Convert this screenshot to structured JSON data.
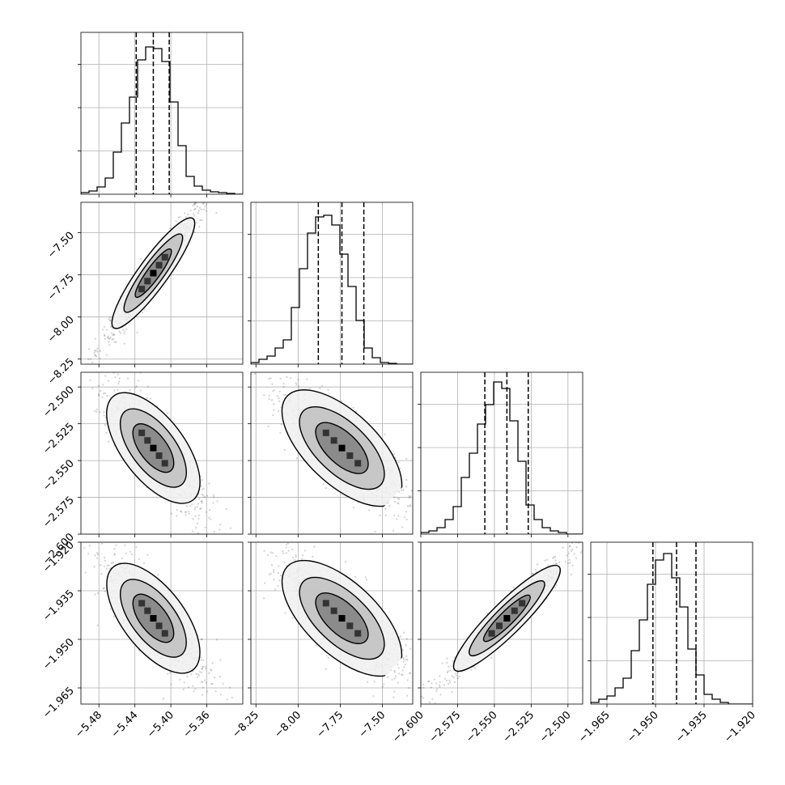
{
  "chart_data": {
    "type": "corner",
    "grid": true,
    "parameters": [
      {
        "range": [
          -5.5,
          -5.32
        ],
        "ticks": [
          -5.48,
          -5.44,
          -5.4,
          -5.36
        ],
        "tick_labels": [
          "−5.48",
          "−5.44",
          "−5.40",
          "−5.36"
        ],
        "quantiles": [
          -5.4385,
          -5.4195,
          -5.4018
        ],
        "histogram": [
          0.01,
          0.02,
          0.045,
          0.1,
          0.26,
          0.44,
          0.6,
          0.83,
          0.91,
          0.9,
          0.82,
          0.57,
          0.3,
          0.11,
          0.05,
          0.025,
          0.015,
          0.01,
          0.005,
          0.0
        ]
      },
      {
        "range": [
          -8.28,
          -7.32
        ],
        "ticks": [
          -8.25,
          -8.0,
          -7.75,
          -7.5
        ],
        "tick_labels": [
          "−8.25",
          "−8.00",
          "−7.75",
          "−7.50"
        ],
        "quantiles": [
          -7.88,
          -7.74,
          -7.61
        ],
        "histogram": [
          0.01,
          0.03,
          0.05,
          0.1,
          0.15,
          0.35,
          0.59,
          0.81,
          0.91,
          0.92,
          0.86,
          0.68,
          0.48,
          0.27,
          0.1,
          0.04,
          0.01,
          0.005,
          0.0,
          0.0
        ]
      },
      {
        "range": [
          -2.6,
          -2.49
        ],
        "ticks": [
          -2.6,
          -2.575,
          -2.55,
          -2.525,
          -2.5
        ],
        "tick_labels": [
          "−2.600",
          "−2.575",
          "−2.550",
          "−2.525",
          "−2.500"
        ],
        "quantiles": [
          -2.5565,
          -2.5415,
          -2.527
        ],
        "histogram": [
          0.01,
          0.02,
          0.04,
          0.09,
          0.17,
          0.35,
          0.5,
          0.68,
          0.8,
          0.94,
          0.9,
          0.7,
          0.45,
          0.18,
          0.09,
          0.04,
          0.02,
          0.01,
          0.0,
          0.0
        ]
      },
      {
        "range": [
          -1.97,
          -1.92
        ],
        "ticks": [
          -1.965,
          -1.95,
          -1.935,
          -1.92
        ],
        "tick_labels": [
          "−1.965",
          "−1.950",
          "−1.935",
          "−1.920"
        ],
        "quantiles": [
          -1.9508,
          -1.9435,
          -1.9375
        ],
        "histogram": [
          0.01,
          0.03,
          0.05,
          0.1,
          0.16,
          0.33,
          0.52,
          0.74,
          0.89,
          0.93,
          0.78,
          0.6,
          0.34,
          0.18,
          0.06,
          0.03,
          0.01,
          0.0,
          0.0,
          0.0
        ]
      }
    ]
  }
}
